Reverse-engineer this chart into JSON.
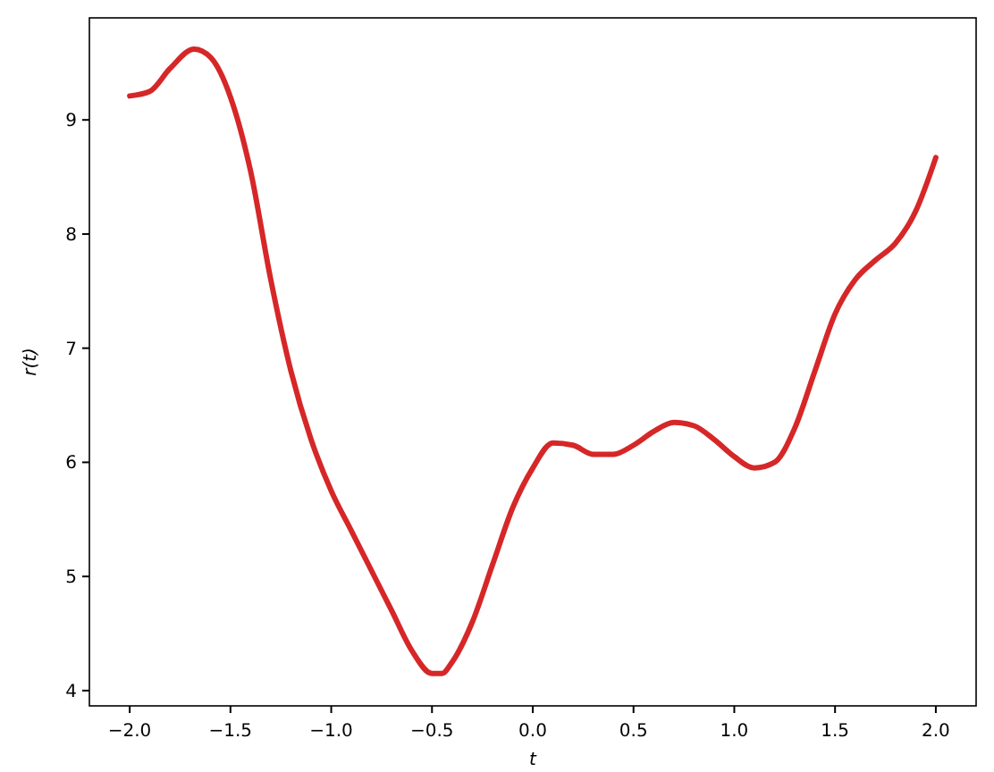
{
  "chart_data": {
    "type": "line",
    "xlabel": "t",
    "ylabel": "r(t)",
    "x": [
      -2,
      -1.9,
      -1.8,
      -1.68,
      -1.6,
      -1.5,
      -1.4,
      -1.3,
      -1.2,
      -1.1,
      -1,
      -0.9,
      -0.8,
      -0.7,
      -0.6,
      -0.5,
      -0.45,
      -0.4,
      -0.3,
      -0.2,
      -0.1,
      0,
      0.1,
      0.2,
      0.3,
      0.4,
      0.5,
      0.6,
      0.7,
      0.8,
      0.9,
      1,
      1.1,
      1.2,
      1.3,
      1.4,
      1.5,
      1.6,
      1.7,
      1.8,
      1.9,
      2
    ],
    "series": [
      {
        "color": "#d62728",
        "values": [
          9.21,
          9.25,
          9.45,
          9.62,
          9.55,
          9.2,
          8.55,
          7.6,
          6.8,
          6.2,
          5.75,
          5.4,
          5.05,
          4.7,
          4.35,
          4.15,
          4.15,
          4.25,
          4.6,
          5.1,
          5.6,
          5.95,
          6.17,
          6.15,
          6.07,
          6.07,
          6.15,
          6.27,
          6.35,
          6.32,
          6.2,
          6.05,
          5.95,
          6.0,
          6.3,
          6.8,
          7.3,
          7.6,
          7.77,
          7.92,
          8.2,
          8.67
        ]
      }
    ],
    "xlim": [
      -2.2,
      2.2
    ],
    "ylim": [
      3.866,
      9.894
    ],
    "xticks": [
      {
        "value": -2,
        "label": "−2.0"
      },
      {
        "value": -1.5,
        "label": "−1.5"
      },
      {
        "value": -1,
        "label": "−1.0"
      },
      {
        "value": -0.5,
        "label": "−0.5"
      },
      {
        "value": 0,
        "label": "0.0"
      },
      {
        "value": 0.5,
        "label": "0.5"
      },
      {
        "value": 1,
        "label": "1.0"
      },
      {
        "value": 1.5,
        "label": "1.5"
      },
      {
        "value": 2,
        "label": "2.0"
      }
    ],
    "yticks": [
      4,
      5,
      6,
      7,
      8,
      9
    ],
    "grid": false,
    "line_style": "solid",
    "marker": "none"
  }
}
